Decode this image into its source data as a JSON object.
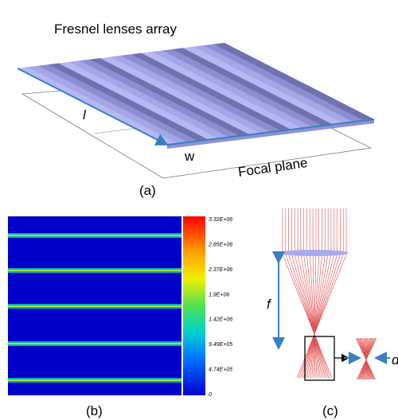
{
  "panel_a": {
    "title": "Fresnel lenses array",
    "length_label": "l",
    "width_label": "w",
    "plane_label": "Focal plane",
    "caption": "(a)"
  },
  "panel_b": {
    "colorbar_labels": [
      "3.32E+06",
      "2.85E+06",
      "2.37E+06",
      "1.9E+06",
      "1.42E+06",
      "9.49E+05",
      "4.74E+05",
      "0"
    ],
    "caption": "(b)"
  },
  "panel_c": {
    "focal_label": "f",
    "spot_label": "d",
    "caption": "(c)"
  }
}
